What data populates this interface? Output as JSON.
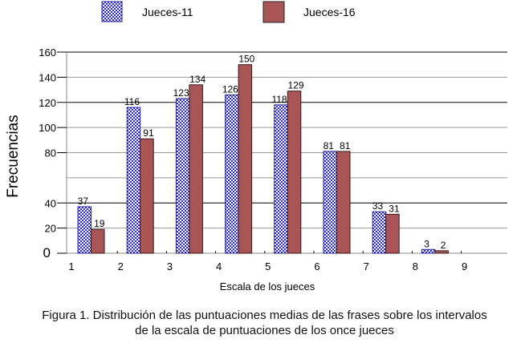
{
  "chart_data": {
    "type": "bar",
    "categories": [
      "1",
      "2",
      "3",
      "4",
      "5",
      "6",
      "7",
      "8",
      "9"
    ],
    "series": [
      {
        "name": "Jueces-11",
        "values": [
          37,
          116,
          123,
          126,
          118,
          81,
          33,
          3,
          null
        ],
        "color": "#3333cc"
      },
      {
        "name": "Jueces-16",
        "values": [
          19,
          91,
          134,
          150,
          129,
          81,
          31,
          2,
          null
        ],
        "color": "#a95555"
      }
    ],
    "yticks": [
      0,
      20,
      40,
      80,
      100,
      120,
      140,
      160
    ],
    "ylim": [
      0,
      160
    ],
    "xlabel": "Escala de los jueces",
    "ylabel": "Frecuencias",
    "legend": "top",
    "grid": true
  },
  "caption": [
    "Figura 1. Distribución de las puntuaciones medias de las frases sobre los intervalos",
    "de la escala de puntuaciones de los once jueces"
  ]
}
